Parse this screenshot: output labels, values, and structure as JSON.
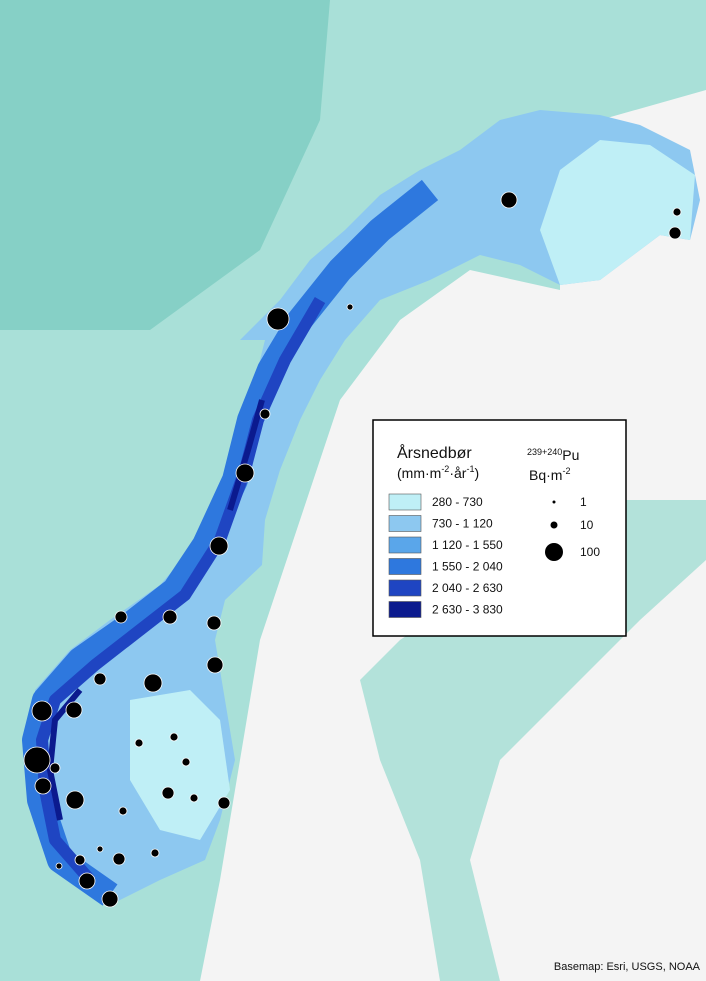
{
  "legend": {
    "precip_title": "Årsnedbør",
    "precip_unit": [
      "(mm·m",
      "-2",
      "·år",
      "-1",
      ")"
    ],
    "classes": [
      {
        "label": "280 - 730",
        "color": "#bfeff6"
      },
      {
        "label": "730 - 1 120",
        "color": "#8dc8f0"
      },
      {
        "label": "1 120 - 1 550",
        "color": "#5aa6ea"
      },
      {
        "label": "1 550 - 2 040",
        "color": "#2e78de"
      },
      {
        "label": "2 040 - 2 630",
        "color": "#1f45c2"
      },
      {
        "label": "2 630 - 3 830",
        "color": "#0b1a8e"
      }
    ],
    "pu_title": [
      "239+240",
      "Pu"
    ],
    "pu_unit": [
      "Bq·m",
      "-2"
    ],
    "sizes": [
      "1",
      "10",
      "100"
    ]
  },
  "credit": "Basemap: Esri, USGS, NOAA"
}
